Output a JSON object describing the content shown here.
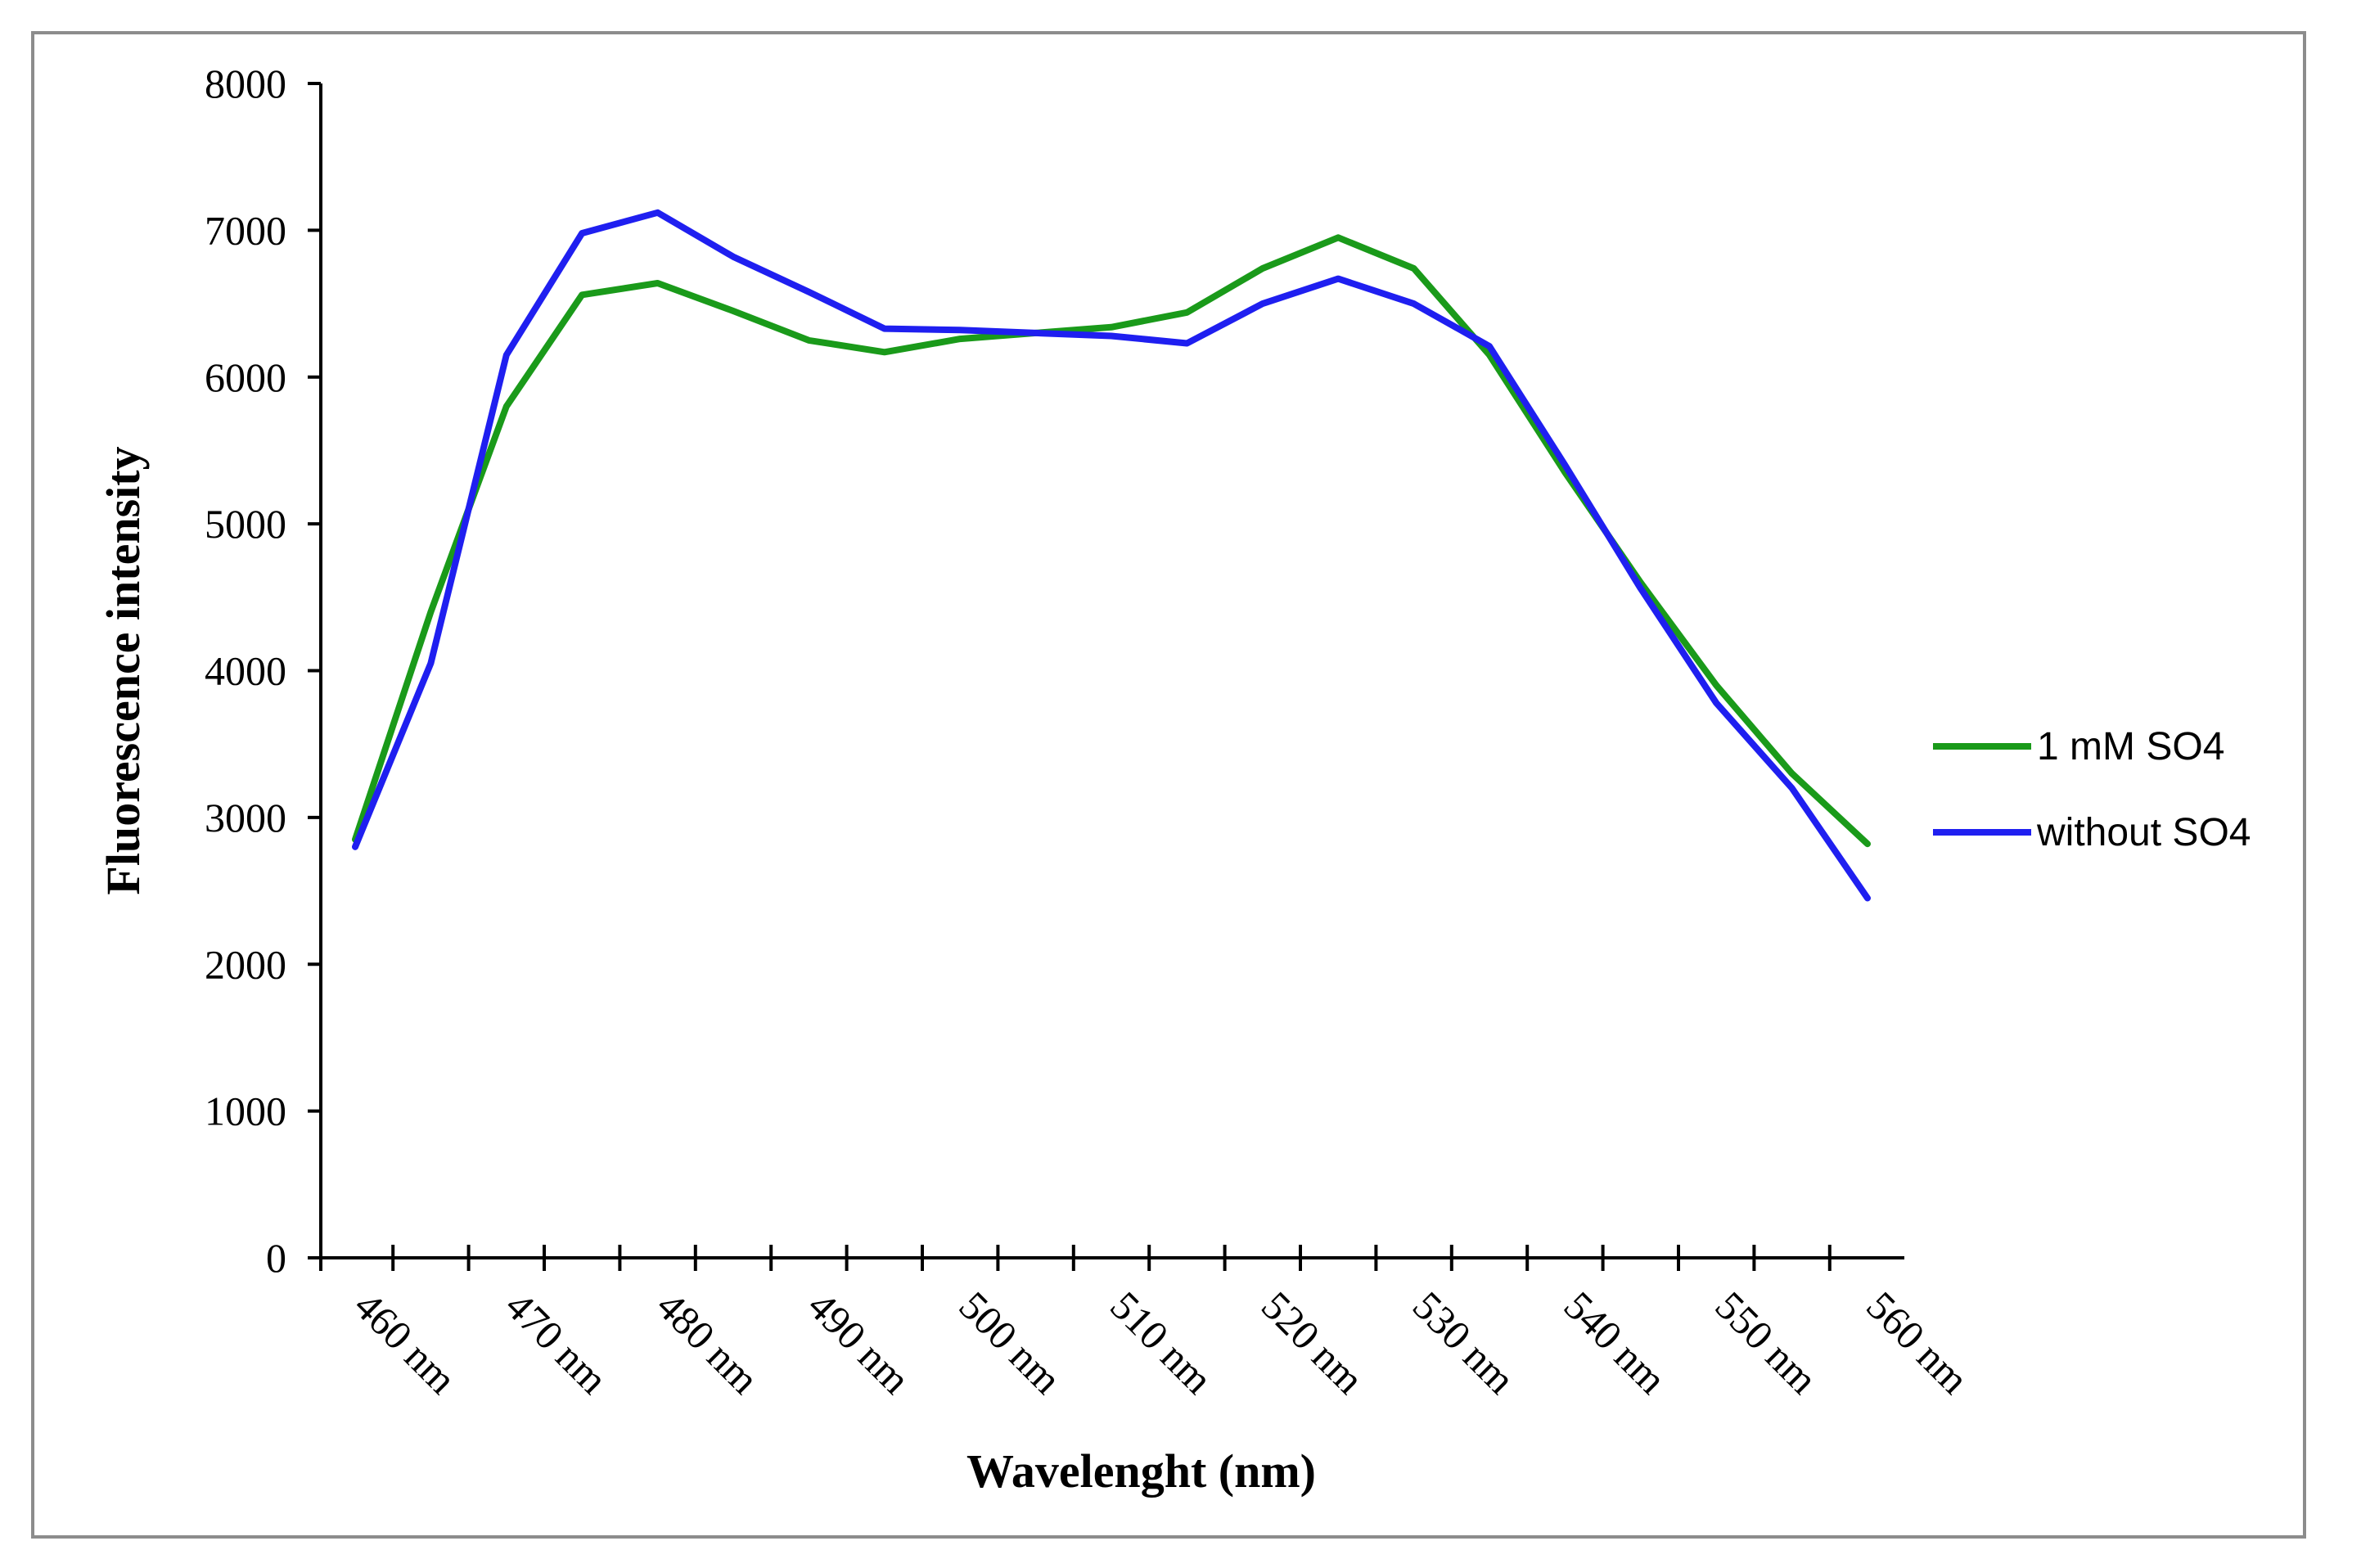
{
  "chart_data": {
    "type": "line",
    "title": "",
    "xlabel": "Wavelenght (nm)",
    "ylabel": "Fluorescence intensity",
    "ylim": [
      0,
      8000
    ],
    "yticks": [
      0,
      1000,
      2000,
      3000,
      4000,
      5000,
      6000,
      7000,
      8000
    ],
    "grid": false,
    "legend_position": "right",
    "x_tick_labels": [
      {
        "x": 460,
        "label": "460 nm"
      },
      {
        "x": 470,
        "label": "470 nm"
      },
      {
        "x": 480,
        "label": "480 nm"
      },
      {
        "x": 490,
        "label": "490 nm"
      },
      {
        "x": 500,
        "label": "500 nm"
      },
      {
        "x": 510,
        "label": "510 nm"
      },
      {
        "x": 520,
        "label": "520 nm"
      },
      {
        "x": 530,
        "label": "530 nm"
      },
      {
        "x": 540,
        "label": "540 nm"
      },
      {
        "x": 550,
        "label": "550 nm"
      },
      {
        "x": 560,
        "label": "560 nm"
      }
    ],
    "x": [
      460,
      465,
      470,
      475,
      480,
      485,
      490,
      495,
      500,
      505,
      510,
      515,
      520,
      525,
      530,
      535,
      540,
      545,
      550,
      555,
      560
    ],
    "series": [
      {
        "name": "1 mM SO4",
        "color": "#1a9a1a",
        "values": [
          2850,
          4400,
          5800,
          6560,
          6640,
          6450,
          6250,
          6170,
          6260,
          6300,
          6340,
          6440,
          6740,
          6950,
          6740,
          6150,
          5350,
          4600,
          3900,
          3300,
          2820
        ]
      },
      {
        "name": "without SO4",
        "color": "#1f1ff0",
        "values": [
          2800,
          4050,
          6150,
          6980,
          7120,
          6820,
          6580,
          6330,
          6320,
          6300,
          6280,
          6230,
          6500,
          6670,
          6500,
          6210,
          5400,
          4560,
          3780,
          3200,
          2450
        ]
      }
    ]
  }
}
